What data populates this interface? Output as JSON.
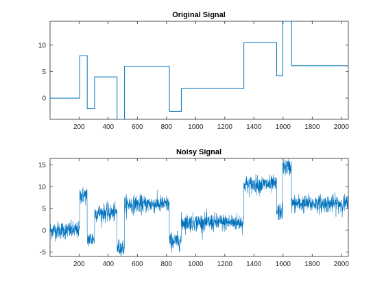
{
  "chart_data": [
    {
      "type": "line",
      "title": "Original Signal",
      "xlabel": "",
      "ylabel": "",
      "xlim": [
        1,
        2048
      ],
      "ylim": [
        -4,
        14.5
      ],
      "xticks": [
        200,
        400,
        600,
        800,
        1000,
        1200,
        1400,
        1600,
        1800,
        2000
      ],
      "yticks": [
        0,
        5,
        10
      ],
      "grid": false,
      "line_color": "#0072BD",
      "series": [
        {
          "style": "step",
          "x": [
            1,
            205,
            205,
            256,
            256,
            307,
            307,
            461,
            461,
            512,
            512,
            820,
            820,
            902,
            902,
            1331,
            1331,
            1556,
            1556,
            1597,
            1597,
            1658,
            1658,
            2048
          ],
          "values": [
            0,
            0,
            8,
            8,
            -2,
            -2,
            4,
            4,
            -4,
            -4,
            6,
            6,
            -2.5,
            -2.5,
            1.8,
            1.8,
            10.5,
            10.5,
            4.2,
            4.2,
            14.5,
            14.5,
            6.1,
            6.1
          ]
        }
      ]
    },
    {
      "type": "line",
      "title": "Noisy Signal",
      "xlabel": "",
      "ylabel": "",
      "xlim": [
        1,
        2048
      ],
      "ylim": [
        -6,
        16.5
      ],
      "xticks": [
        200,
        400,
        600,
        800,
        1000,
        1200,
        1400,
        1600,
        1800,
        2000
      ],
      "yticks": [
        -5,
        0,
        5,
        10,
        15
      ],
      "grid": false,
      "line_color": "#0072BD",
      "series": [
        {
          "style": "noisy-piecewise",
          "segments": [
            {
              "x0": 1,
              "x1": 205,
              "level": 0
            },
            {
              "x0": 205,
              "x1": 256,
              "level": 8
            },
            {
              "x0": 256,
              "x1": 307,
              "level": -2
            },
            {
              "x0": 307,
              "x1": 461,
              "level": 4
            },
            {
              "x0": 461,
              "x1": 512,
              "level": -4
            },
            {
              "x0": 512,
              "x1": 820,
              "level": 6
            },
            {
              "x0": 820,
              "x1": 902,
              "level": -2.5
            },
            {
              "x0": 902,
              "x1": 1331,
              "level": 1.8
            },
            {
              "x0": 1331,
              "x1": 1556,
              "level": 10.5
            },
            {
              "x0": 1556,
              "x1": 1597,
              "level": 4.2
            },
            {
              "x0": 1597,
              "x1": 1658,
              "level": 14.5
            },
            {
              "x0": 1658,
              "x1": 2048,
              "level": 6.1
            }
          ],
          "noise_amplitude": 1.0
        }
      ]
    }
  ]
}
